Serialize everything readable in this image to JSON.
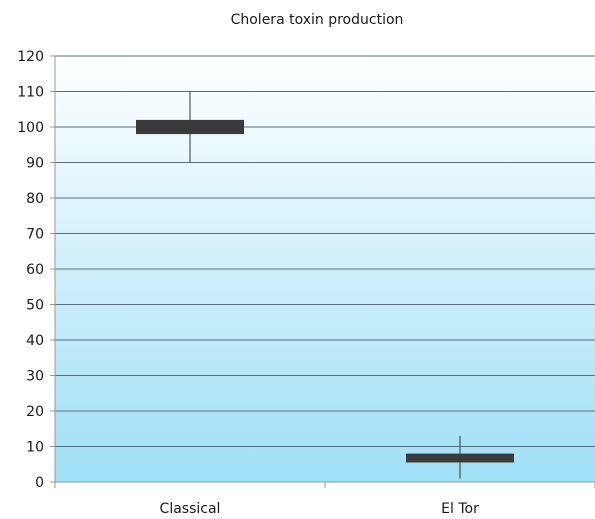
{
  "chart_data": {
    "type": "box",
    "title": "Cholera toxin production",
    "xlabel": "",
    "ylabel": "",
    "ylim": [
      0,
      120
    ],
    "ytick_step": 10,
    "grid": true,
    "categories": [
      "Classical",
      "El Tor"
    ],
    "boxes": [
      {
        "category": "Classical",
        "min": 90,
        "q1": 98,
        "q3": 102,
        "max": 110
      },
      {
        "category": "El Tor",
        "min": 1,
        "q1": 5.5,
        "q3": 8,
        "max": 13
      }
    ],
    "colors": {
      "plot_gradient_top": "#ffffff",
      "plot_gradient_bottom": "#9fdff6",
      "gridline": "#5a6f80",
      "box_fill": "#3a3a3a",
      "whisker": "#333333",
      "axis": "#999999"
    }
  }
}
